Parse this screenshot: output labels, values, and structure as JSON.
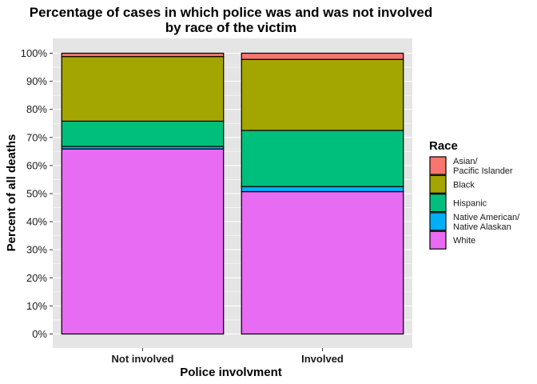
{
  "chart_data": {
    "type": "bar",
    "stacked": true,
    "title_lines": [
      "Percentage of cases in which police was and was not involved",
      "by race of the victim"
    ],
    "xlabel": "Police involvment",
    "ylabel": "Percent of all deaths",
    "ylim": [
      0,
      100
    ],
    "yticks": [
      "0%",
      "10%",
      "20%",
      "30%",
      "40%",
      "50%",
      "60%",
      "70%",
      "80%",
      "90%",
      "100%"
    ],
    "categories": [
      "Not involved",
      "Involved"
    ],
    "legend_title": "Race",
    "legend_position": "right",
    "grid": true,
    "series": [
      {
        "name": "Asian/\nPacific Islander",
        "color": "#F8766D",
        "values": [
          1.2,
          2.2
        ]
      },
      {
        "name": "Black",
        "color": "#A3A500",
        "values": [
          23.0,
          25.3
        ]
      },
      {
        "name": "Hispanic",
        "color": "#00BF7D",
        "values": [
          9.0,
          20.0
        ]
      },
      {
        "name": "Native American/\nNative Alaskan",
        "color": "#00B0F6",
        "values": [
          0.9,
          1.8
        ]
      },
      {
        "name": "White",
        "color": "#E76BF3",
        "values": [
          65.9,
          50.7
        ]
      }
    ]
  }
}
